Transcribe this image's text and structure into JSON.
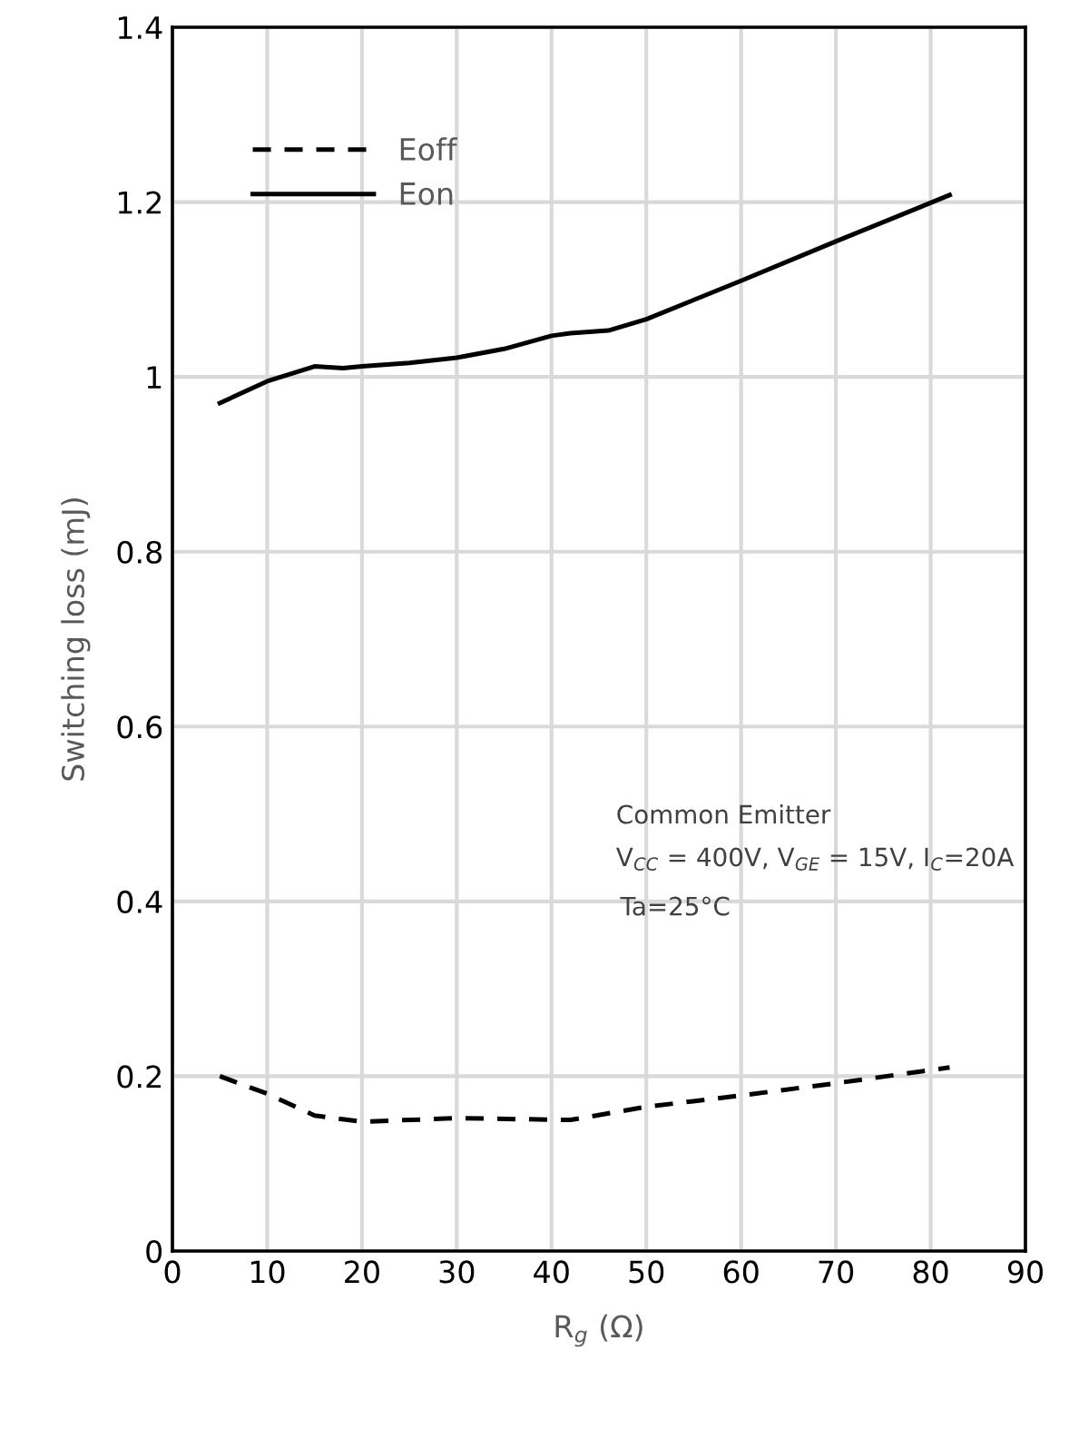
{
  "chart_data": {
    "type": "line",
    "xlabel": "R$_{g}$ (Ω)",
    "ylabel": "Switching loss (mJ)",
    "xlim": [
      0,
      90
    ],
    "xticks": [
      0,
      10,
      20,
      30,
      40,
      50,
      60,
      70,
      80,
      90
    ],
    "ylim": [
      0,
      1.4
    ],
    "yticks": [
      0,
      {
        "value": 0.2,
        "label": "0.2"
      },
      {
        "value": 0.4,
        "label": "0.4"
      },
      {
        "value": 0.6,
        "label": "0.6"
      },
      {
        "value": 0.8,
        "label": "0.8"
      },
      1,
      {
        "value": 1.2,
        "label": "1.2"
      },
      {
        "value": 1.4,
        "label": "1.4"
      }
    ],
    "grid": true,
    "legend": "top left",
    "marker": "none",
    "series": [
      {
        "name": "Eoff",
        "color": "#000000",
        "line_style": "dashed",
        "x": [
          5,
          10,
          15,
          20,
          30,
          42,
          50,
          60,
          70,
          82
        ],
        "values": [
          0.2,
          0.18,
          0.155,
          0.148,
          0.152,
          0.15,
          0.165,
          0.178,
          0.192,
          0.21
        ]
      },
      {
        "name": "Eon",
        "color": "#000000",
        "line_style": "solid",
        "x": [
          5,
          10,
          15,
          18,
          20,
          25,
          30,
          35,
          40,
          42,
          46,
          50,
          60,
          70,
          82
        ],
        "values": [
          0.97,
          0.995,
          1.012,
          1.01,
          1.012,
          1.016,
          1.022,
          1.032,
          1.047,
          1.05,
          1.053,
          1.066,
          1.11,
          1.155,
          1.208
        ]
      }
    ],
    "annotations": [
      "Common Emitter",
      "V$_{CC}$ = 400V, V$_{GE}$ = 15V, I$_{C}$=20A",
      "Ta=25°C"
    ]
  }
}
